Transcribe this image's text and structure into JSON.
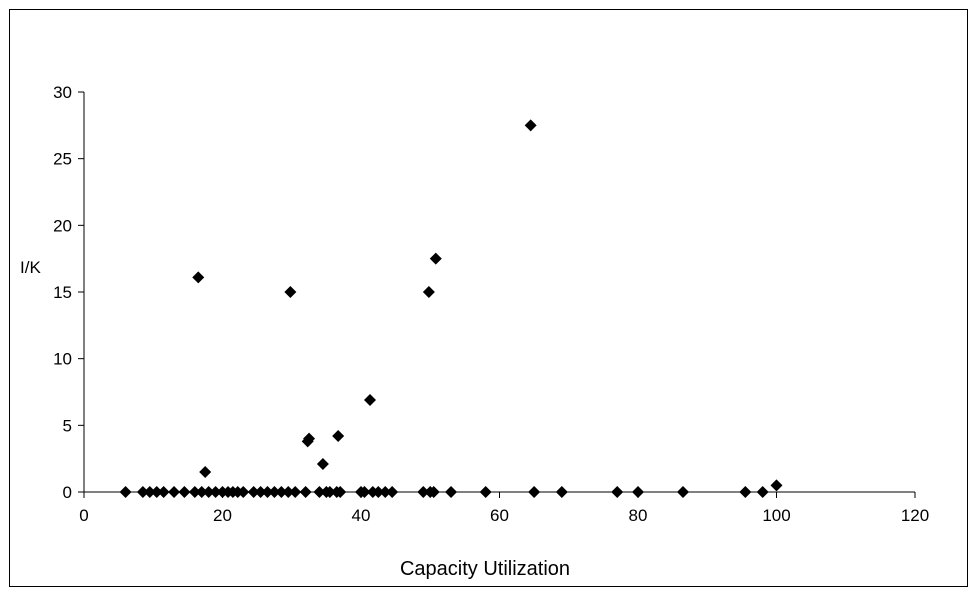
{
  "chart_data": {
    "type": "scatter",
    "title": "",
    "xlabel": "Capacity Utilization",
    "ylabel": "I/K",
    "xlim": [
      0,
      120
    ],
    "ylim": [
      0,
      30
    ],
    "xticks": [
      0,
      20,
      40,
      60,
      80,
      100,
      120
    ],
    "yticks": [
      0,
      5,
      10,
      15,
      20,
      25,
      30
    ],
    "grid": false,
    "marker": "diamond",
    "marker_color": "#000000",
    "points": [
      [
        6,
        0
      ],
      [
        8.5,
        0
      ],
      [
        9.5,
        0
      ],
      [
        10.5,
        0
      ],
      [
        11.5,
        0
      ],
      [
        13,
        0
      ],
      [
        14.5,
        0
      ],
      [
        16,
        0
      ],
      [
        16.5,
        16.1
      ],
      [
        17,
        0
      ],
      [
        17.5,
        1.5
      ],
      [
        18,
        0
      ],
      [
        19,
        0
      ],
      [
        20,
        0
      ],
      [
        20.8,
        0
      ],
      [
        21.5,
        0
      ],
      [
        22.2,
        0
      ],
      [
        23,
        0
      ],
      [
        24.5,
        0
      ],
      [
        25.5,
        0
      ],
      [
        26.5,
        0
      ],
      [
        27.5,
        0
      ],
      [
        28.5,
        0
      ],
      [
        29.5,
        0
      ],
      [
        29.8,
        15
      ],
      [
        30.5,
        0
      ],
      [
        32,
        0
      ],
      [
        32.3,
        3.8
      ],
      [
        32.5,
        4.0
      ],
      [
        34,
        0
      ],
      [
        34.5,
        2.1
      ],
      [
        35,
        0
      ],
      [
        35.5,
        0
      ],
      [
        36.5,
        0
      ],
      [
        36.7,
        4.2
      ],
      [
        37,
        0
      ],
      [
        40,
        0
      ],
      [
        40.5,
        0
      ],
      [
        41.3,
        6.9
      ],
      [
        41.7,
        0
      ],
      [
        42.5,
        0
      ],
      [
        43.5,
        0
      ],
      [
        44.5,
        0
      ],
      [
        49,
        0
      ],
      [
        49.8,
        15
      ],
      [
        50,
        0
      ],
      [
        50.5,
        0
      ],
      [
        50.8,
        17.5
      ],
      [
        53,
        0
      ],
      [
        58,
        0
      ],
      [
        64.5,
        27.5
      ],
      [
        65,
        0
      ],
      [
        69,
        0
      ],
      [
        77,
        0
      ],
      [
        80,
        0
      ],
      [
        86.5,
        0
      ],
      [
        95.5,
        0
      ],
      [
        98,
        0
      ],
      [
        100,
        0.5
      ]
    ]
  }
}
